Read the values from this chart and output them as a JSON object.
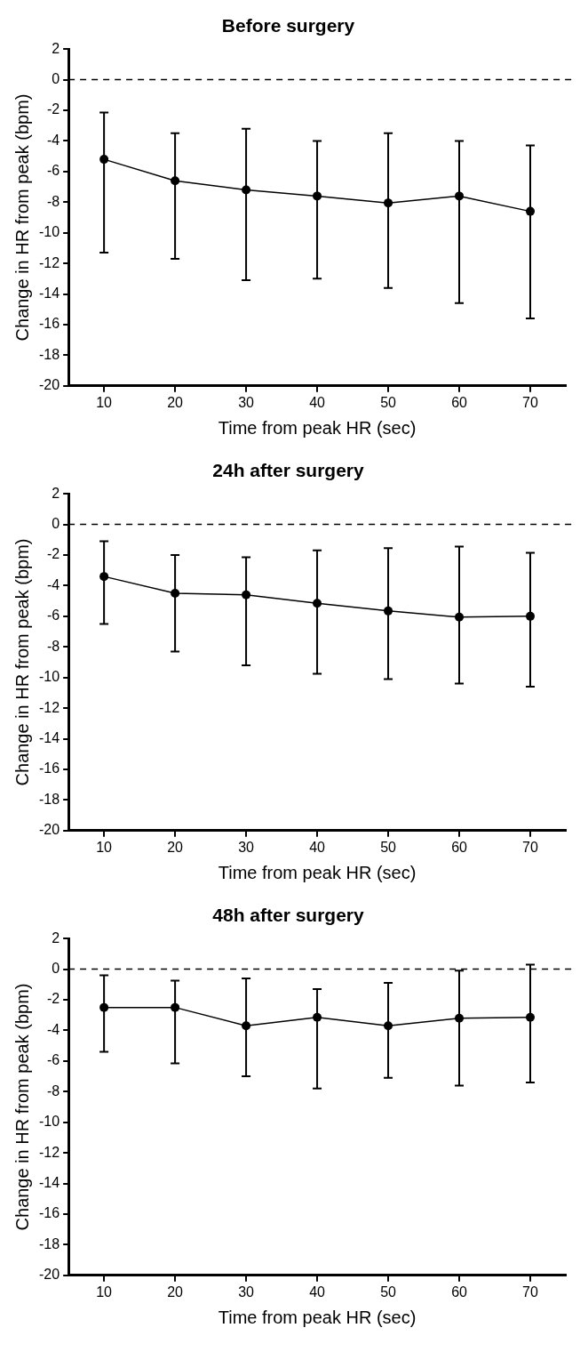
{
  "chart_data": [
    {
      "type": "line",
      "title": "Before surgery",
      "xlabel": "Time from peak HR (sec)",
      "ylabel": "Change in HR from peak (bpm)",
      "categories": [
        "10",
        "20",
        "30",
        "40",
        "50",
        "60",
        "70"
      ],
      "series": [
        {
          "color": "#000000",
          "values": [
            -5.2,
            -6.6,
            -7.2,
            -7.6,
            -8.05,
            -7.6,
            -8.6
          ],
          "errors": [
            [
              -11.3,
              -2.15
            ],
            [
              -11.7,
              -3.5
            ],
            [
              -13.1,
              -3.2
            ],
            [
              -13.0,
              -4.0
            ],
            [
              -13.6,
              -3.5
            ],
            [
              -14.6,
              -4.0
            ],
            [
              -15.6,
              -4.3
            ]
          ]
        }
      ],
      "ylim": [
        -20,
        2
      ],
      "yticks": [
        -20,
        -18,
        -16,
        -14,
        -12,
        -10,
        -8,
        -6,
        -4,
        -2,
        0,
        2
      ],
      "grid": false,
      "legend": false,
      "marker": "circle",
      "line_style": "solid",
      "ref_lines": [
        {
          "axis": "y",
          "value": 0,
          "color": "#000000",
          "line_style": "dashed"
        }
      ]
    },
    {
      "type": "line",
      "title": "24h after surgery",
      "xlabel": "Time from peak HR (sec)",
      "ylabel": "Change in HR from peak (bpm)",
      "categories": [
        "10",
        "20",
        "30",
        "40",
        "50",
        "60",
        "70"
      ],
      "series": [
        {
          "color": "#000000",
          "values": [
            -3.4,
            -4.5,
            -4.6,
            -5.15,
            -5.65,
            -6.05,
            -6.0
          ],
          "errors": [
            [
              -6.5,
              -1.1
            ],
            [
              -8.3,
              -2.0
            ],
            [
              -9.2,
              -2.15
            ],
            [
              -9.75,
              -1.7
            ],
            [
              -10.1,
              -1.55
            ],
            [
              -10.4,
              -1.45
            ],
            [
              -10.6,
              -1.85
            ]
          ]
        }
      ],
      "ylim": [
        -20,
        2
      ],
      "yticks": [
        -20,
        -18,
        -16,
        -14,
        -12,
        -10,
        -8,
        -6,
        -4,
        -2,
        0,
        2
      ],
      "grid": false,
      "legend": false,
      "marker": "circle",
      "line_style": "solid",
      "ref_lines": [
        {
          "axis": "y",
          "value": 0,
          "color": "#000000",
          "line_style": "dashed"
        }
      ]
    },
    {
      "type": "line",
      "title": "48h after surgery",
      "xlabel": "Time from peak HR (sec)",
      "ylabel": "Change in HR from peak (bpm)",
      "categories": [
        "10",
        "20",
        "30",
        "40",
        "50",
        "60",
        "70"
      ],
      "series": [
        {
          "color": "#000000",
          "values": [
            -2.5,
            -2.5,
            -3.7,
            -3.15,
            -3.7,
            -3.2,
            -3.15
          ],
          "errors": [
            [
              -5.4,
              -0.4
            ],
            [
              -6.15,
              -0.75
            ],
            [
              -7.0,
              -0.6
            ],
            [
              -7.8,
              -1.3
            ],
            [
              -7.1,
              -0.9
            ],
            [
              -7.6,
              -0.1
            ],
            [
              -7.4,
              0.3
            ]
          ]
        }
      ],
      "ylim": [
        -20,
        2
      ],
      "yticks": [
        -20,
        -18,
        -16,
        -14,
        -12,
        -10,
        -8,
        -6,
        -4,
        -2,
        0,
        2
      ],
      "grid": false,
      "legend": false,
      "marker": "circle",
      "line_style": "solid",
      "ref_lines": [
        {
          "axis": "y",
          "value": 0,
          "color": "#000000",
          "line_style": "dashed"
        }
      ]
    }
  ]
}
